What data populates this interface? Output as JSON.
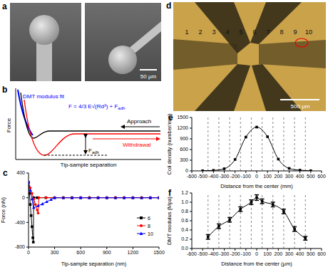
{
  "panel_a": {
    "label": "a",
    "scale_bar": "50 μm"
  },
  "panel_b": {
    "label": "b",
    "y_label": "Force",
    "x_label": "Tip-sample separation",
    "fit_label": "DMT modulus fit",
    "formula": {
      "main": "F = 4/3 E√(Rd³) + F",
      "sub": "adh"
    },
    "approach": "Approach",
    "withdrawal": "Withdrawal",
    "adhesion": {
      "main": "F",
      "sub": "adh"
    }
  },
  "panel_d": {
    "label": "d",
    "scale_bar": "500 μm",
    "positions": [
      "1",
      "2",
      "3",
      "4",
      "5",
      "6",
      "7",
      "8",
      "9",
      "10"
    ]
  },
  "chart_data": [
    {
      "label": "c",
      "type": "line",
      "x_label": "Tip-sample separation (nm)",
      "y_label": "Force (nN)",
      "xlim": [
        0,
        1500
      ],
      "xticks": [
        0,
        300,
        600,
        900,
        1200,
        1500
      ],
      "ylim": [
        -800,
        400
      ],
      "yticks": [
        -800,
        -400,
        0,
        400
      ],
      "legend": "lower right",
      "series": [
        {
          "name": "6",
          "color": "#000000",
          "marker": "square",
          "x": [
            0,
            10,
            20,
            30,
            40,
            50,
            55,
            60,
            100,
            200,
            300,
            400,
            500,
            600,
            700,
            800,
            900,
            1000,
            1100,
            1200,
            1300,
            1400,
            1500
          ],
          "values": [
            250,
            70,
            -110,
            -290,
            -470,
            -650,
            -720,
            0,
            0,
            0,
            0,
            0,
            0,
            0,
            0,
            0,
            0,
            0,
            0,
            0,
            0,
            0,
            0
          ]
        },
        {
          "name": "8",
          "color": "#ff0000",
          "marker": "circle",
          "x": [
            0,
            20,
            40,
            60,
            80,
            100,
            110,
            120,
            200,
            300,
            400,
            500,
            600,
            700,
            800,
            900,
            1000,
            1100,
            1200,
            1300,
            1400,
            1500
          ],
          "values": [
            250,
            160,
            70,
            -20,
            -110,
            -200,
            -250,
            0,
            0,
            0,
            0,
            0,
            0,
            0,
            0,
            0,
            0,
            0,
            0,
            0,
            0,
            0
          ]
        },
        {
          "name": "10",
          "color": "#0000ff",
          "marker": "triangle",
          "x": [
            0,
            20,
            40,
            60,
            110,
            160,
            210,
            260,
            300,
            400,
            500,
            600,
            700,
            800,
            900,
            1000,
            1100,
            1200,
            1300,
            1400,
            1500
          ],
          "values": [
            250,
            120,
            -20,
            -160,
            -130,
            -100,
            -65,
            -30,
            0,
            0,
            0,
            0,
            0,
            0,
            0,
            0,
            0,
            0,
            0,
            0,
            0
          ]
        }
      ]
    },
    {
      "label": "e",
      "type": "line",
      "x_label": "Distance from the center (mm)",
      "y_label": "Coil density (number/mm)",
      "xlim": [
        -600,
        600
      ],
      "xticks": [
        -600,
        -500,
        -400,
        -300,
        -200,
        -100,
        0,
        100,
        200,
        300,
        400,
        500,
        600
      ],
      "ylim": [
        0,
        1500
      ],
      "yticks": [
        0,
        300,
        600,
        900,
        1200,
        1500
      ],
      "reference_lines": [
        -450,
        -350,
        -250,
        -150,
        -50,
        50,
        150,
        250,
        350,
        450
      ],
      "series": [
        {
          "color": "#000000",
          "marker": "square",
          "x": [
            -500,
            -400,
            -300,
            -200,
            -100,
            0,
            100,
            200,
            300,
            400,
            500
          ],
          "values": [
            5,
            15,
            60,
            320,
            950,
            1230,
            960,
            330,
            70,
            20,
            5
          ]
        }
      ]
    },
    {
      "label": "f",
      "type": "line",
      "x_label": "Distance from the center (μm)",
      "y_label": "DMT modulus (Mpa)",
      "xlim": [
        -600,
        600
      ],
      "xticks": [
        -600,
        -500,
        -400,
        -300,
        -200,
        -100,
        0,
        100,
        200,
        300,
        400,
        500,
        600
      ],
      "ylim": [
        0,
        1.2
      ],
      "yticks": [
        {
          "value": 0,
          "label": "0.0"
        },
        0.2,
        0.4,
        0.6,
        0.8,
        {
          "value": 1,
          "label": "1.0"
        },
        1.2
      ],
      "reference_lines": [
        -450,
        -350,
        -250,
        -150,
        -50,
        50,
        150,
        250,
        350,
        450
      ],
      "series": [
        {
          "color": "#000000",
          "marker": "square",
          "x": [
            -450,
            -350,
            -250,
            -150,
            -50,
            0,
            50,
            150,
            250,
            350,
            450
          ],
          "values": [
            0.25,
            0.48,
            0.62,
            0.85,
            1.0,
            1.1,
            1.02,
            0.95,
            0.8,
            0.42,
            0.22
          ],
          "errors": [
            0.05,
            0.05,
            0.05,
            0.05,
            0.05,
            0.06,
            0.05,
            0.05,
            0.05,
            0.05,
            0.04
          ]
        }
      ]
    }
  ]
}
